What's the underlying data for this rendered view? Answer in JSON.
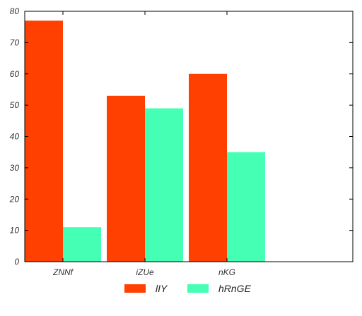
{
  "chart_data": {
    "type": "bar",
    "title": "",
    "xlabel": "",
    "ylabel": "",
    "categories": [
      "ZNNf",
      "iZUe",
      "nKG"
    ],
    "series": [
      {
        "name": "lIY",
        "values": [
          77,
          53,
          60
        ],
        "color": "#ff4000"
      },
      {
        "name": "hRnGE",
        "values": [
          11,
          49,
          35
        ],
        "color": "#44ffb4"
      }
    ],
    "ylim": [
      0,
      80
    ],
    "yticks": [
      0,
      10,
      20,
      30,
      40,
      50,
      60,
      70,
      80
    ],
    "grid": false,
    "legend_position": "bottom-center"
  }
}
